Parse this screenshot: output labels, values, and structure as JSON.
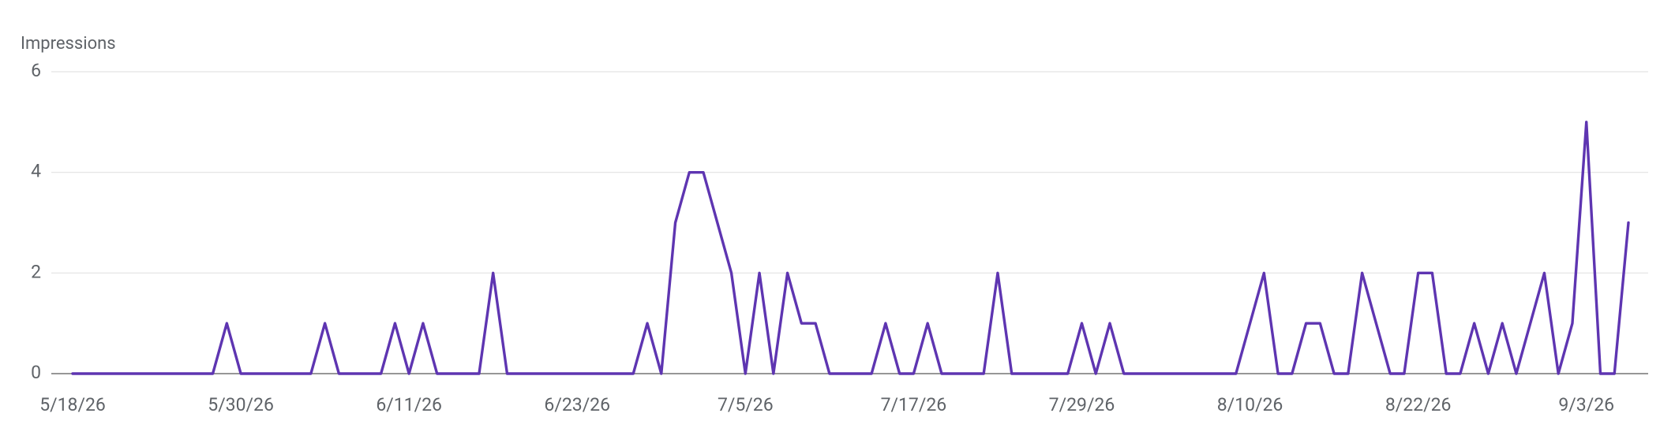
{
  "chart_data": {
    "type": "line",
    "y_label": "Impressions",
    "categories": [
      "5/18/26",
      null,
      null,
      null,
      null,
      null,
      null,
      null,
      null,
      null,
      null,
      null,
      "5/30/26",
      null,
      null,
      null,
      null,
      null,
      null,
      null,
      null,
      null,
      null,
      null,
      "6/11/26",
      null,
      null,
      null,
      null,
      null,
      null,
      null,
      null,
      null,
      null,
      null,
      "6/23/26",
      null,
      null,
      null,
      null,
      null,
      null,
      null,
      null,
      null,
      null,
      null,
      "7/5/26",
      null,
      null,
      null,
      null,
      null,
      null,
      null,
      null,
      null,
      null,
      null,
      "7/17/26",
      null,
      null,
      null,
      null,
      null,
      null,
      null,
      null,
      null,
      null,
      null,
      "7/29/26",
      null,
      null,
      null,
      null,
      null,
      null,
      null,
      null,
      null,
      null,
      null,
      "8/10/26",
      null,
      null,
      null,
      null,
      null,
      null,
      null,
      null,
      null,
      null,
      null,
      "8/22/26",
      null,
      null,
      null,
      null,
      null,
      null,
      null,
      null,
      null,
      null,
      null,
      "9/3/26",
      null,
      null,
      null
    ],
    "values": [
      0,
      0,
      0,
      0,
      0,
      0,
      0,
      0,
      0,
      0,
      0,
      1,
      0,
      0,
      0,
      0,
      0,
      0,
      1,
      0,
      0,
      0,
      0,
      1,
      0,
      1,
      0,
      0,
      0,
      0,
      2,
      0,
      0,
      0,
      0,
      0,
      0,
      0,
      0,
      0,
      0,
      1,
      0,
      3,
      4,
      4,
      3,
      2,
      0,
      2,
      0,
      2,
      1,
      1,
      0,
      0,
      0,
      0,
      1,
      0,
      0,
      1,
      0,
      0,
      0,
      0,
      2,
      0,
      0,
      0,
      0,
      0,
      1,
      0,
      1,
      0,
      0,
      0,
      0,
      0,
      0,
      0,
      0,
      0,
      1,
      2,
      0,
      0,
      1,
      1,
      0,
      0,
      2,
      1,
      0,
      0,
      2,
      2,
      0,
      0,
      1,
      0,
      1,
      0,
      1,
      2,
      0,
      1,
      5,
      0,
      0,
      3
    ],
    "color": "#5e35b1",
    "ylim": [
      0,
      6
    ],
    "yticks": [
      0,
      2,
      4,
      6
    ],
    "grid": true
  }
}
